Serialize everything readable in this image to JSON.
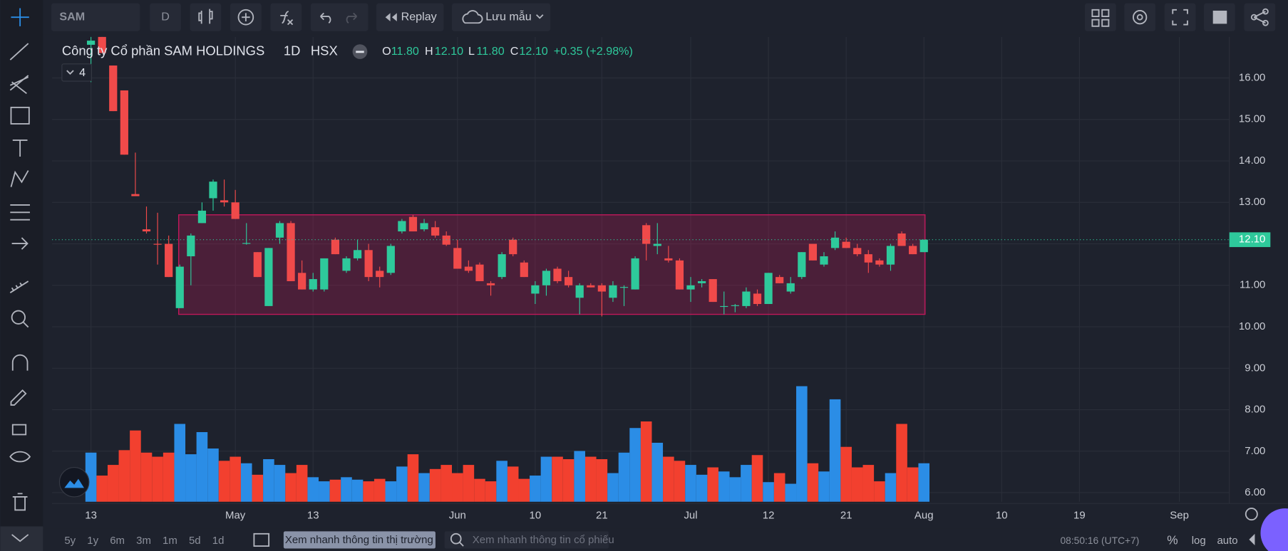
{
  "toolbar": {
    "symbol": "SAM",
    "interval": "D",
    "replay": "Replay",
    "save": "Lưu mẫu"
  },
  "legend": {
    "company": "Công ty Cổ phần SAM HOLDINGS",
    "interval": "1D",
    "exchange": "HSX",
    "o_key": "O",
    "o": "11.80",
    "h_key": "H",
    "h": "12.10",
    "l_key": "L",
    "l": "11.80",
    "c_key": "C",
    "c": "12.10",
    "change": "+0.35 (+2.98%)",
    "indicators": "4"
  },
  "chart_data": {
    "type": "candlestick",
    "x": [
      0,
      1,
      2,
      3,
      4,
      5,
      6,
      7,
      8,
      9,
      10,
      11,
      12,
      13,
      14,
      15,
      16,
      17,
      18,
      19,
      20,
      21,
      22,
      23,
      24,
      25,
      26,
      27,
      28,
      29,
      30,
      31,
      32,
      33,
      34,
      35,
      36,
      37,
      38,
      39,
      40,
      41,
      42,
      43,
      44,
      45,
      46,
      47,
      48,
      49,
      50,
      51,
      52,
      53,
      54,
      55,
      56,
      57,
      58,
      59,
      60,
      61,
      62,
      63,
      64,
      65,
      66,
      67,
      68,
      69,
      70,
      71,
      72,
      73,
      74,
      75
    ],
    "open": [
      16.8,
      17.3,
      16.3,
      15.7,
      13.2,
      12.35,
      12.0,
      12.0,
      10.45,
      11.7,
      12.5,
      13.1,
      13.05,
      13.0,
      12.0,
      11.8,
      10.5,
      12.15,
      12.5,
      11.3,
      10.9,
      10.9,
      12.1,
      11.35,
      11.65,
      11.85,
      11.35,
      11.3,
      12.3,
      12.65,
      12.35,
      12.4,
      12.2,
      11.9,
      11.45,
      11.5,
      11.05,
      11.2,
      12.1,
      11.55,
      10.8,
      11.0,
      11.4,
      11.2,
      10.7,
      11.0,
      11.0,
      10.7,
      10.95,
      10.9,
      12.45,
      11.95,
      11.65,
      11.6,
      10.9,
      11.05,
      11.15,
      10.5,
      10.5,
      10.5,
      10.8,
      10.55,
      11.2,
      10.85,
      11.2,
      12.0,
      11.5,
      11.9,
      12.05,
      11.9,
      11.75,
      11.6,
      11.5,
      12.25,
      11.95,
      11.8
    ],
    "high": [
      17.0,
      17.4,
      16.3,
      15.7,
      14.2,
      12.9,
      12.75,
      12.2,
      11.5,
      12.25,
      13.0,
      13.55,
      13.55,
      13.3,
      12.5,
      11.8,
      11.9,
      12.55,
      12.55,
      11.6,
      11.3,
      11.65,
      12.15,
      11.7,
      12.1,
      12.0,
      11.45,
      12.0,
      12.6,
      12.7,
      12.6,
      12.55,
      12.3,
      12.1,
      11.6,
      11.55,
      11.1,
      11.8,
      12.15,
      11.6,
      11.1,
      11.4,
      11.45,
      11.35,
      11.05,
      11.05,
      11.05,
      11.1,
      11.0,
      11.7,
      12.5,
      12.5,
      11.95,
      11.65,
      11.2,
      11.15,
      11.15,
      10.85,
      10.55,
      10.95,
      10.9,
      11.3,
      11.25,
      11.2,
      11.8,
      12.0,
      11.8,
      12.3,
      12.15,
      12.0,
      11.85,
      11.65,
      12.0,
      12.3,
      12.0,
      12.1
    ],
    "low": [
      15.9,
      16.6,
      15.2,
      14.15,
      13.15,
      12.25,
      11.5,
      11.2,
      10.45,
      11.0,
      12.5,
      12.8,
      12.9,
      12.6,
      11.98,
      11.2,
      10.5,
      12.0,
      11.1,
      10.9,
      10.85,
      10.85,
      11.75,
      11.3,
      11.6,
      11.1,
      10.95,
      11.25,
      12.25,
      12.3,
      12.3,
      12.15,
      11.95,
      11.4,
      11.3,
      11.1,
      10.75,
      11.15,
      11.7,
      11.2,
      10.55,
      10.75,
      11.05,
      10.95,
      10.3,
      10.95,
      10.25,
      10.6,
      10.5,
      10.9,
      11.6,
      11.75,
      11.55,
      10.9,
      10.6,
      10.95,
      10.6,
      10.3,
      10.35,
      10.45,
      10.5,
      10.55,
      11.05,
      10.8,
      11.15,
      11.6,
      11.45,
      11.85,
      11.9,
      11.7,
      11.3,
      11.45,
      11.35,
      11.95,
      11.75,
      11.8
    ],
    "close": [
      16.9,
      16.6,
      15.2,
      14.15,
      13.15,
      12.3,
      11.98,
      11.2,
      11.45,
      12.2,
      12.8,
      13.5,
      13.0,
      12.6,
      12.02,
      11.2,
      11.9,
      12.5,
      11.1,
      10.9,
      11.15,
      11.65,
      11.75,
      11.65,
      11.85,
      11.2,
      11.2,
      11.95,
      12.55,
      12.3,
      12.5,
      12.2,
      11.98,
      11.4,
      11.35,
      11.1,
      11.0,
      11.75,
      11.75,
      11.2,
      11.0,
      11.35,
      11.1,
      11.0,
      11.0,
      10.95,
      10.85,
      11.0,
      10.96,
      11.65,
      12.0,
      12.0,
      11.6,
      10.9,
      11.0,
      11.1,
      10.6,
      10.5,
      10.52,
      10.85,
      10.55,
      11.3,
      11.05,
      11.05,
      11.8,
      11.6,
      11.7,
      12.15,
      11.9,
      11.75,
      11.55,
      11.5,
      11.95,
      11.95,
      11.75,
      12.1
    ],
    "volume": [
      60,
      32,
      45,
      63,
      87,
      60,
      55,
      60,
      95,
      58,
      85,
      65,
      50,
      55,
      47,
      33,
      52,
      45,
      35,
      45,
      30,
      25,
      27,
      30,
      27,
      25,
      28,
      25,
      43,
      58,
      35,
      40,
      45,
      35,
      45,
      28,
      25,
      50,
      43,
      28,
      32,
      55,
      55,
      52,
      62,
      55,
      52,
      35,
      60,
      90,
      98,
      72,
      55,
      50,
      45,
      33,
      42,
      37,
      30,
      45,
      57,
      24,
      35,
      22,
      141,
      47,
      37,
      125,
      67,
      42,
      45,
      25,
      35,
      95,
      42,
      47
    ],
    "up_color": "#2ec99b",
    "down_color": "#f04a4a",
    "volume_up_color": "#2b8de6",
    "volume_down_color": "#f2402f",
    "xlim": [
      -3.5,
      102.5
    ],
    "ylim": [
      5.78,
      16.99
    ],
    "volume_lim": [
      0,
      567
    ],
    "yticks": [
      {
        "value": 6,
        "label": "6.00"
      },
      {
        "value": 7,
        "label": "7.00"
      },
      {
        "value": 8,
        "label": "8.00"
      },
      {
        "value": 9,
        "label": "9.00"
      },
      {
        "value": 10,
        "label": "10.00"
      },
      {
        "value": 11,
        "label": "11.00"
      },
      {
        "value": 12,
        "label": "12.00"
      },
      {
        "value": 13,
        "label": "13.00"
      },
      {
        "value": 14,
        "label": "14.00"
      },
      {
        "value": 15,
        "label": "15.00"
      },
      {
        "value": 16,
        "label": "16.00"
      }
    ],
    "xticks": [
      {
        "value": 0,
        "label": "13"
      },
      {
        "value": 13,
        "label": "May"
      },
      {
        "value": 20,
        "label": "13"
      },
      {
        "value": 33,
        "label": "Jun"
      },
      {
        "value": 40,
        "label": "10"
      },
      {
        "value": 46,
        "label": "21"
      },
      {
        "value": 54,
        "label": "Jul"
      },
      {
        "value": 61,
        "label": "12"
      },
      {
        "value": 68,
        "label": "21"
      },
      {
        "value": 75,
        "label": "Aug"
      },
      {
        "value": 82,
        "label": "10"
      },
      {
        "value": 89,
        "label": "19"
      },
      {
        "value": 98,
        "label": "Sep"
      }
    ],
    "zone": {
      "x": [
        7.9,
        75.1
      ],
      "y": [
        10.3,
        12.7
      ],
      "color": "#c2185b"
    },
    "last_price": {
      "value": 12.1,
      "label": "12.10"
    },
    "grid": true
  },
  "bottom_bar": {
    "ranges": [
      "5y",
      "1y",
      "6m",
      "3m",
      "1m",
      "5d",
      "1d"
    ],
    "market_button": "Xem nhanh thông tin thị trường",
    "search": "Xem nhanh thông tin cổ phiếu",
    "clock": "08:50:16 (UTC+7)",
    "percent": "%",
    "log": "log",
    "auto": "auto"
  }
}
